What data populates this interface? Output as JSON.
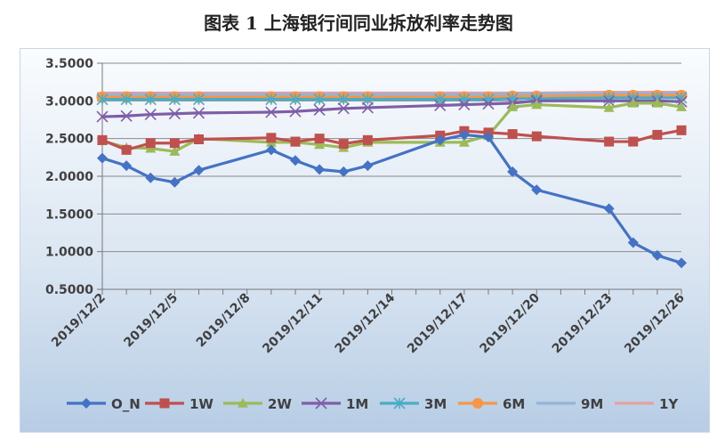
{
  "title": "图表 1  上海银行间同业拆放利率走势图",
  "chart_data": {
    "type": "line",
    "title": "图表 1  上海银行间同业拆放利率走势图",
    "xlabel": "",
    "ylabel": "",
    "ylim": [
      0.5,
      3.5
    ],
    "y_ticks": [
      "3.5000",
      "3.0000",
      "2.5000",
      "2.0000",
      "1.5000",
      "1.0000",
      "0.5000"
    ],
    "x_tick_labels": [
      "2019/12/2",
      "2019/12/5",
      "2019/12/8",
      "2019/12/11",
      "2019/12/14",
      "2019/12/17",
      "2019/12/20",
      "2019/12/23",
      "2019/12/26"
    ],
    "x_range": [
      "2019/12/2",
      "2019/12/26"
    ],
    "grid": "horizontal",
    "legend": "bottom",
    "x": [
      "2019/12/2",
      "2019/12/3",
      "2019/12/4",
      "2019/12/5",
      "2019/12/6",
      "2019/12/9",
      "2019/12/10",
      "2019/12/11",
      "2019/12/12",
      "2019/12/13",
      "2019/12/16",
      "2019/12/17",
      "2019/12/18",
      "2019/12/19",
      "2019/12/20",
      "2019/12/23",
      "2019/12/24",
      "2019/12/25",
      "2019/12/26"
    ],
    "series": [
      {
        "name": "O_N",
        "color": "#4472c4",
        "marker": "diamond",
        "values": [
          2.24,
          2.14,
          1.98,
          1.92,
          2.08,
          2.35,
          2.21,
          2.09,
          2.06,
          2.14,
          2.48,
          2.55,
          2.52,
          2.06,
          1.82,
          1.57,
          1.12,
          0.95,
          0.85
        ]
      },
      {
        "name": "1W",
        "color": "#c0504d",
        "marker": "square",
        "values": [
          2.48,
          2.35,
          2.44,
          2.44,
          2.49,
          2.51,
          2.46,
          2.5,
          2.43,
          2.48,
          2.54,
          2.6,
          2.58,
          2.56,
          2.53,
          2.46,
          2.46,
          2.55,
          2.61
        ]
      },
      {
        "name": "2W",
        "color": "#9bbb59",
        "marker": "triangle",
        "values": [
          2.47,
          2.38,
          2.37,
          2.33,
          2.5,
          2.45,
          2.45,
          2.42,
          2.38,
          2.45,
          2.45,
          2.45,
          2.54,
          2.92,
          2.95,
          2.91,
          2.97,
          2.97,
          2.92
        ]
      },
      {
        "name": "1M",
        "color": "#7f5ea8",
        "marker": "x",
        "values": [
          2.79,
          2.8,
          2.82,
          2.83,
          2.84,
          2.85,
          2.86,
          2.88,
          2.9,
          2.91,
          2.94,
          2.95,
          2.96,
          2.97,
          3.0,
          3.0,
          3.0,
          3.0,
          2.99
        ]
      },
      {
        "name": "3M",
        "color": "#4bacc6",
        "marker": "star",
        "values": [
          3.02,
          3.02,
          3.02,
          3.02,
          3.02,
          3.02,
          3.02,
          3.02,
          3.02,
          3.02,
          3.02,
          3.02,
          3.02,
          3.03,
          3.03,
          3.04,
          3.04,
          3.04,
          3.04
        ]
      },
      {
        "name": "6M",
        "color": "#f79646",
        "marker": "circle",
        "values": [
          3.05,
          3.05,
          3.05,
          3.05,
          3.05,
          3.05,
          3.05,
          3.05,
          3.05,
          3.05,
          3.05,
          3.05,
          3.05,
          3.06,
          3.06,
          3.07,
          3.07,
          3.07,
          3.07
        ]
      },
      {
        "name": "9M",
        "color": "#95b3d7",
        "marker": "dash",
        "values": [
          3.08,
          3.08,
          3.08,
          3.08,
          3.08,
          3.08,
          3.08,
          3.08,
          3.08,
          3.08,
          3.08,
          3.08,
          3.08,
          3.09,
          3.09,
          3.09,
          3.09,
          3.09,
          3.09
        ]
      },
      {
        "name": "1Y",
        "color": "#e6a0a0",
        "marker": "dash",
        "values": [
          3.1,
          3.1,
          3.1,
          3.1,
          3.1,
          3.1,
          3.1,
          3.1,
          3.1,
          3.1,
          3.1,
          3.1,
          3.1,
          3.1,
          3.1,
          3.11,
          3.11,
          3.11,
          3.11
        ]
      }
    ]
  }
}
